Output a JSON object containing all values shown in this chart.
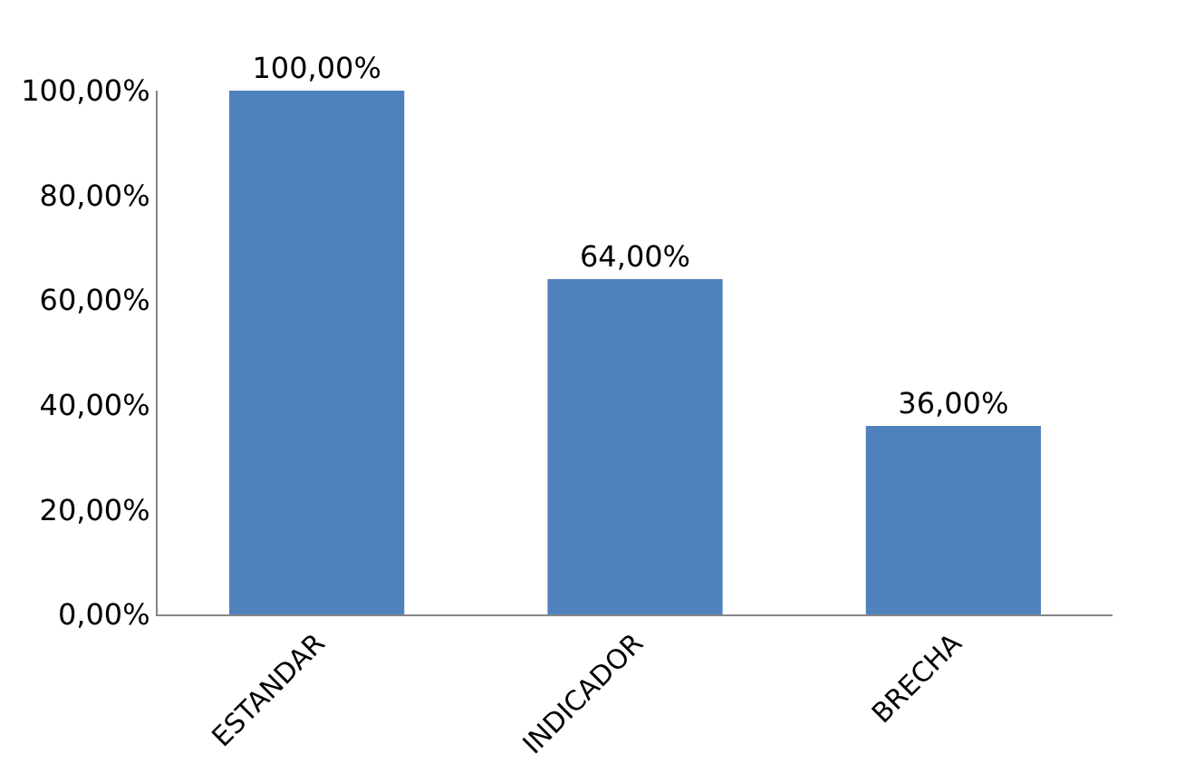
{
  "chart_data": {
    "type": "bar",
    "categories": [
      "ESTANDAR",
      "INDICADOR",
      "BRECHA"
    ],
    "values": [
      100,
      64,
      36
    ],
    "color": "#4f81bd",
    "value_labels": [
      "100,00%",
      "64,00%",
      "36,00%"
    ],
    "ylim": [
      0,
      100
    ],
    "yticks": [
      {
        "value": 0,
        "label": "0,00%"
      },
      {
        "value": 20,
        "label": "20,00%"
      },
      {
        "value": 40,
        "label": "40,00%"
      },
      {
        "value": 60,
        "label": "60,00%"
      },
      {
        "value": 80,
        "label": "80,00%"
      },
      {
        "value": 100,
        "label": "100,00%"
      }
    ],
    "legend": false
  }
}
